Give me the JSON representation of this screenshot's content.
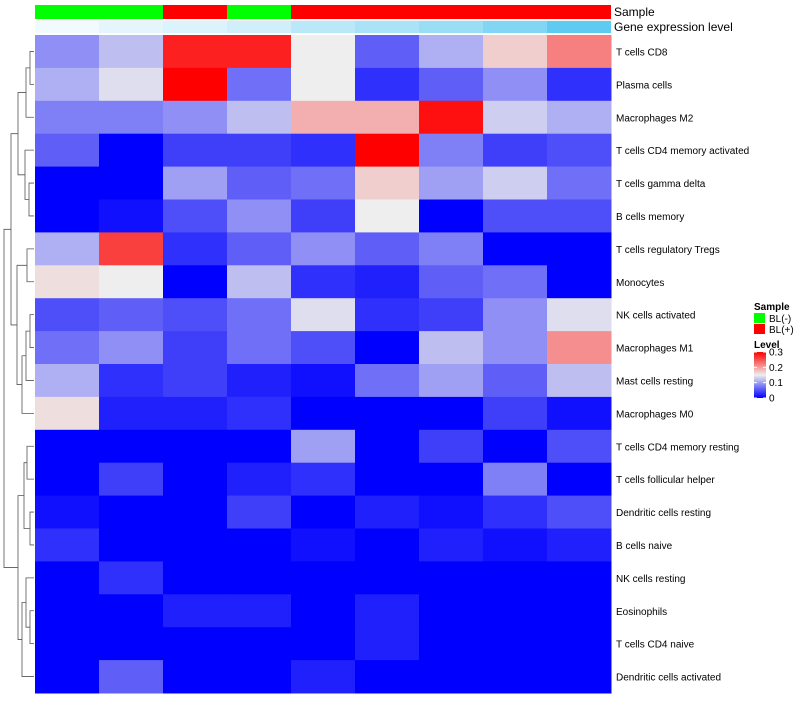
{
  "chart_data": {
    "type": "heatmap",
    "annotations": [
      {
        "name": "Sample",
        "values": [
          "BL(-)",
          "BL(-)",
          "BL(+)",
          "BL(-)",
          "BL(+)",
          "BL(+)",
          "BL(+)",
          "BL(+)",
          "BL(+)"
        ],
        "colors": {
          "BL(-)": "#00ff00",
          "BL(+)": "#ff0000"
        }
      },
      {
        "name": "Gene expression level",
        "values": [
          0.02,
          0.1,
          0.15,
          0.22,
          0.35,
          0.45,
          0.55,
          0.7,
          0.9
        ],
        "color_low": "#f4fbfe",
        "color_high": "#4fc6ee"
      }
    ],
    "rows": [
      {
        "label": "T cells CD8",
        "values": [
          0.09,
          0.12,
          0.28,
          0.28,
          0.15,
          0.06,
          0.11,
          0.17,
          0.22
        ]
      },
      {
        "label": "Plasma cells",
        "values": [
          0.11,
          0.14,
          0.31,
          0.07,
          0.15,
          0.03,
          0.06,
          0.09,
          0.03
        ]
      },
      {
        "label": "Macrophages M2",
        "values": [
          0.08,
          0.08,
          0.09,
          0.12,
          0.19,
          0.19,
          0.29,
          0.13,
          0.11
        ]
      },
      {
        "label": "T cells CD4 memory activated",
        "values": [
          0.06,
          0.0,
          0.04,
          0.04,
          0.03,
          0.31,
          0.08,
          0.04,
          0.05
        ]
      },
      {
        "label": "T cells gamma delta",
        "values": [
          0.0,
          0.0,
          0.1,
          0.06,
          0.07,
          0.17,
          0.1,
          0.13,
          0.07
        ]
      },
      {
        "label": "B cells memory",
        "values": [
          0.0,
          0.01,
          0.05,
          0.09,
          0.04,
          0.15,
          0.0,
          0.05,
          0.05
        ]
      },
      {
        "label": "T cells regulatory  Tregs",
        "values": [
          0.11,
          0.26,
          0.03,
          0.06,
          0.09,
          0.06,
          0.08,
          0.0,
          0.0
        ]
      },
      {
        "label": "Monocytes",
        "values": [
          0.16,
          0.15,
          0.0,
          0.12,
          0.03,
          0.02,
          0.06,
          0.07,
          0.0
        ]
      },
      {
        "label": "NK cells activated",
        "values": [
          0.05,
          0.06,
          0.05,
          0.07,
          0.14,
          0.03,
          0.04,
          0.09,
          0.14
        ]
      },
      {
        "label": "Macrophages M1",
        "values": [
          0.07,
          0.09,
          0.04,
          0.07,
          0.05,
          0.0,
          0.12,
          0.09,
          0.21
        ]
      },
      {
        "label": "Mast cells resting",
        "values": [
          0.11,
          0.03,
          0.04,
          0.02,
          0.01,
          0.07,
          0.1,
          0.06,
          0.12
        ]
      },
      {
        "label": "Macrophages M0",
        "values": [
          0.16,
          0.02,
          0.02,
          0.03,
          0.0,
          0.0,
          0.0,
          0.04,
          0.01
        ]
      },
      {
        "label": "T cells CD4 memory resting",
        "values": [
          0.0,
          0.0,
          0.0,
          0.0,
          0.1,
          0.0,
          0.04,
          0.0,
          0.05
        ]
      },
      {
        "label": "T cells follicular helper",
        "values": [
          0.0,
          0.04,
          0.0,
          0.02,
          0.03,
          0.0,
          0.0,
          0.08,
          0.0
        ]
      },
      {
        "label": "Dendritic cells resting",
        "values": [
          0.01,
          0.0,
          0.0,
          0.04,
          0.0,
          0.02,
          0.01,
          0.03,
          0.05
        ]
      },
      {
        "label": "B cells naive",
        "values": [
          0.03,
          0.0,
          0.0,
          0.0,
          0.01,
          0.0,
          0.02,
          0.01,
          0.02
        ]
      },
      {
        "label": "NK cells resting",
        "values": [
          0.0,
          0.03,
          0.0,
          0.0,
          0.0,
          0.0,
          0.0,
          0.0,
          0.0
        ]
      },
      {
        "label": "Eosinophils",
        "values": [
          0.0,
          0.0,
          0.02,
          0.02,
          0.0,
          0.02,
          0.0,
          0.0,
          0.0
        ]
      },
      {
        "label": "T cells CD4 naive",
        "values": [
          0.0,
          0.0,
          0.0,
          0.0,
          0.0,
          0.02,
          0.0,
          0.0,
          0.0
        ]
      },
      {
        "label": "Dendritic cells activated",
        "values": [
          0.0,
          0.06,
          0.0,
          0.0,
          0.02,
          0.0,
          0.0,
          0.0,
          0.0
        ]
      }
    ],
    "color_scale": {
      "title": "Level",
      "range": [
        0,
        0.3
      ],
      "ticks": [
        "0.3",
        "0.2",
        "0.1",
        "0"
      ],
      "tick_values": [
        0.3,
        0.2,
        0.1,
        0
      ],
      "low": "#0000ff",
      "mid": "#eeeeee",
      "high": "#ff0000"
    },
    "legend": {
      "title": "Sample",
      "entries": [
        {
          "label": "BL(-)",
          "color": "#00ff00"
        },
        {
          "label": "BL(+)",
          "color": "#ff0000"
        }
      ],
      "placement": "right"
    },
    "dendrogram": "rows, left side"
  }
}
